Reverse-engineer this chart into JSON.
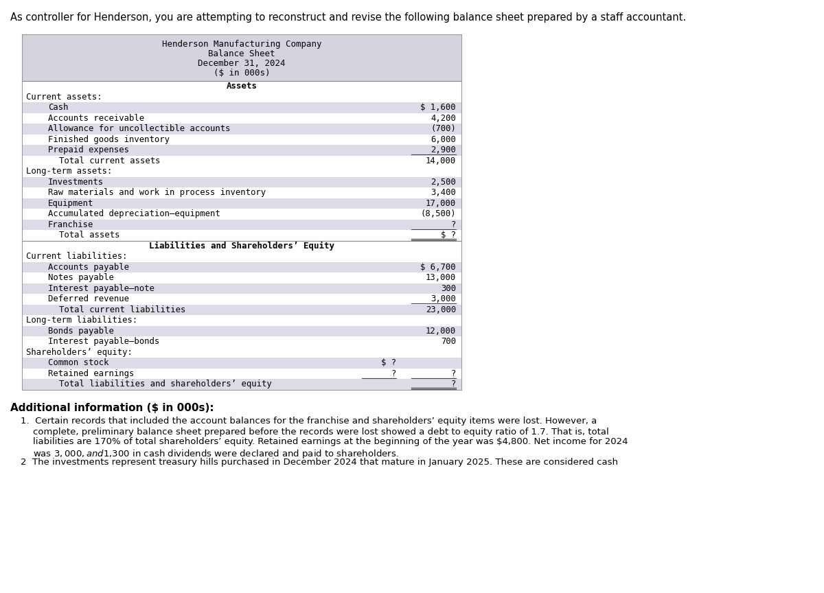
{
  "intro_text": "As controller for Henderson, you are attempting to reconstruct and revise the following balance sheet prepared by a staff accountant.",
  "company_name": "Henderson Manufacturing Company",
  "doc_title": "Balance Sheet",
  "doc_date": "December 31, 2024",
  "doc_unit": "($ in 000s)",
  "header_bg": "#d4d4de",
  "stripe_bg": "#dcdce8",
  "rows": [
    {
      "label": "Assets",
      "col1": "",
      "col2": "",
      "indent": 0,
      "bold": true,
      "center": true,
      "underline": false,
      "double_underline": false,
      "stripe": false,
      "separator_above": false
    },
    {
      "label": "Current assets:",
      "col1": "",
      "col2": "",
      "indent": 0,
      "bold": false,
      "center": false,
      "underline": false,
      "double_underline": false,
      "stripe": false,
      "separator_above": false
    },
    {
      "label": "Cash",
      "col1": "",
      "col2": "$ 1,600",
      "indent": 2,
      "bold": false,
      "center": false,
      "underline": false,
      "double_underline": false,
      "stripe": true,
      "separator_above": false
    },
    {
      "label": "Accounts receivable",
      "col1": "",
      "col2": "4,200",
      "indent": 2,
      "bold": false,
      "center": false,
      "underline": false,
      "double_underline": false,
      "stripe": false,
      "separator_above": false
    },
    {
      "label": "Allowance for uncollectible accounts",
      "col1": "",
      "col2": "(700)",
      "indent": 2,
      "bold": false,
      "center": false,
      "underline": false,
      "double_underline": false,
      "stripe": true,
      "separator_above": false
    },
    {
      "label": "Finished goods inventory",
      "col1": "",
      "col2": "6,000",
      "indent": 2,
      "bold": false,
      "center": false,
      "underline": false,
      "double_underline": false,
      "stripe": false,
      "separator_above": false
    },
    {
      "label": "Prepaid expenses",
      "col1": "",
      "col2": "2,900",
      "indent": 2,
      "bold": false,
      "center": false,
      "underline": true,
      "double_underline": false,
      "stripe": true,
      "separator_above": false
    },
    {
      "label": "Total current assets",
      "col1": "",
      "col2": "14,000",
      "indent": 3,
      "bold": false,
      "center": false,
      "underline": false,
      "double_underline": false,
      "stripe": false,
      "separator_above": false
    },
    {
      "label": "Long-term assets:",
      "col1": "",
      "col2": "",
      "indent": 0,
      "bold": false,
      "center": false,
      "underline": false,
      "double_underline": false,
      "stripe": false,
      "separator_above": false
    },
    {
      "label": "Investments",
      "col1": "",
      "col2": "2,500",
      "indent": 2,
      "bold": false,
      "center": false,
      "underline": false,
      "double_underline": false,
      "stripe": true,
      "separator_above": false
    },
    {
      "label": "Raw materials and work in process inventory",
      "col1": "",
      "col2": "3,400",
      "indent": 2,
      "bold": false,
      "center": false,
      "underline": false,
      "double_underline": false,
      "stripe": false,
      "separator_above": false
    },
    {
      "label": "Equipment",
      "col1": "",
      "col2": "17,000",
      "indent": 2,
      "bold": false,
      "center": false,
      "underline": false,
      "double_underline": false,
      "stripe": true,
      "separator_above": false
    },
    {
      "label": "Accumulated depreciation–equipment",
      "col1": "",
      "col2": "(8,500)",
      "indent": 2,
      "bold": false,
      "center": false,
      "underline": false,
      "double_underline": false,
      "stripe": false,
      "separator_above": false
    },
    {
      "label": "Franchise",
      "col1": "",
      "col2": "?",
      "indent": 2,
      "bold": false,
      "center": false,
      "underline": true,
      "double_underline": false,
      "stripe": true,
      "separator_above": false
    },
    {
      "label": "Total assets",
      "col1": "",
      "col2": "$ ?",
      "indent": 3,
      "bold": false,
      "center": false,
      "underline": false,
      "double_underline": true,
      "stripe": false,
      "separator_above": false
    },
    {
      "label": "Liabilities and Shareholders’ Equity",
      "col1": "",
      "col2": "",
      "indent": 0,
      "bold": true,
      "center": true,
      "underline": false,
      "double_underline": false,
      "stripe": false,
      "separator_above": true
    },
    {
      "label": "Current liabilities:",
      "col1": "",
      "col2": "",
      "indent": 0,
      "bold": false,
      "center": false,
      "underline": false,
      "double_underline": false,
      "stripe": false,
      "separator_above": false
    },
    {
      "label": "Accounts payable",
      "col1": "",
      "col2": "$ 6,700",
      "indent": 2,
      "bold": false,
      "center": false,
      "underline": false,
      "double_underline": false,
      "stripe": true,
      "separator_above": false
    },
    {
      "label": "Notes payable",
      "col1": "",
      "col2": "13,000",
      "indent": 2,
      "bold": false,
      "center": false,
      "underline": false,
      "double_underline": false,
      "stripe": false,
      "separator_above": false
    },
    {
      "label": "Interest payable–note",
      "col1": "",
      "col2": "300",
      "indent": 2,
      "bold": false,
      "center": false,
      "underline": false,
      "double_underline": false,
      "stripe": true,
      "separator_above": false
    },
    {
      "label": "Deferred revenue",
      "col1": "",
      "col2": "3,000",
      "indent": 2,
      "bold": false,
      "center": false,
      "underline": true,
      "double_underline": false,
      "stripe": false,
      "separator_above": false
    },
    {
      "label": "Total current liabilities",
      "col1": "",
      "col2": "23,000",
      "indent": 3,
      "bold": false,
      "center": false,
      "underline": false,
      "double_underline": false,
      "stripe": true,
      "separator_above": false
    },
    {
      "label": "Long-term liabilities:",
      "col1": "",
      "col2": "",
      "indent": 0,
      "bold": false,
      "center": false,
      "underline": false,
      "double_underline": false,
      "stripe": false,
      "separator_above": false
    },
    {
      "label": "Bonds payable",
      "col1": "",
      "col2": "12,000",
      "indent": 2,
      "bold": false,
      "center": false,
      "underline": false,
      "double_underline": false,
      "stripe": true,
      "separator_above": false
    },
    {
      "label": "Interest payable–bonds",
      "col1": "",
      "col2": "700",
      "indent": 2,
      "bold": false,
      "center": false,
      "underline": false,
      "double_underline": false,
      "stripe": false,
      "separator_above": false
    },
    {
      "label": "Shareholders’ equity:",
      "col1": "",
      "col2": "",
      "indent": 0,
      "bold": false,
      "center": false,
      "underline": false,
      "double_underline": false,
      "stripe": false,
      "separator_above": false
    },
    {
      "label": "Common stock",
      "col1": "$ ?",
      "col2": "",
      "indent": 2,
      "bold": false,
      "center": false,
      "underline": false,
      "double_underline": false,
      "stripe": true,
      "separator_above": false
    },
    {
      "label": "Retained earnings",
      "col1": "?",
      "col2": "?",
      "indent": 2,
      "bold": false,
      "center": false,
      "underline": true,
      "double_underline": false,
      "stripe": false,
      "separator_above": false
    },
    {
      "label": "Total liabilities and shareholders’ equity",
      "col1": "",
      "col2": "?",
      "indent": 3,
      "bold": false,
      "center": false,
      "underline": false,
      "double_underline": true,
      "stripe": true,
      "separator_above": false
    }
  ],
  "additional_info_title": "Additional information ($ in 000s):",
  "additional_info_lines": [
    {
      "text": "1.  Certain records that included the account balances for the franchise and shareholders’ equity items were lost. However, a",
      "indent": 30,
      "bold": false
    },
    {
      "text": "complete, preliminary balance sheet prepared before the records were lost showed a debt to equity ratio of 1.7. That is, total",
      "indent": 48,
      "bold": false
    },
    {
      "text": "liabilities are 170% of total shareholders’ equity. Retained earnings at the beginning of the year was $4,800. Net income for 2024",
      "indent": 48,
      "bold": false
    },
    {
      "text": "was $3,000, and $1,300 in cash dividends were declared and paid to shareholders.",
      "indent": 48,
      "bold": false
    },
    {
      "text": "2  The investments represent treasury hills purchased in December 2024 that mature in January 2025. These are considered cash",
      "indent": 30,
      "bold": false
    }
  ]
}
